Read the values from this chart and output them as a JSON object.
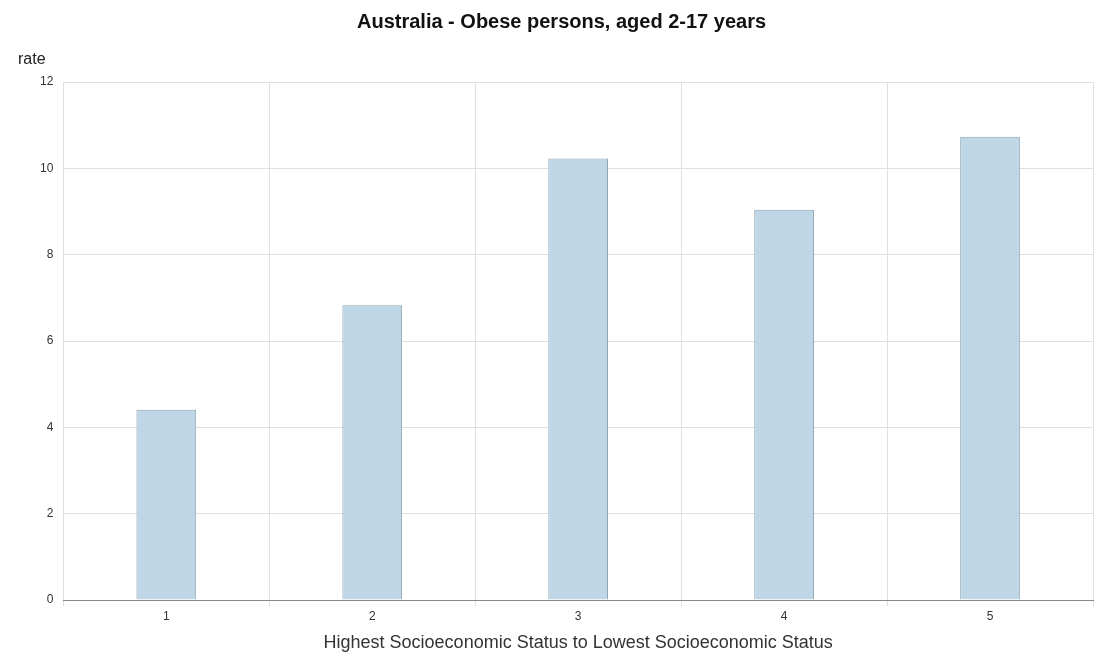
{
  "chart_data": {
    "type": "bar",
    "title": "Australia - Obese persons, aged 2-17 years",
    "xlabel": "Highest Socioeconomic Status to Lowest Socioeconomic Status",
    "ylabel": "rate",
    "categories": [
      "1",
      "2",
      "3",
      "4",
      "5"
    ],
    "values": [
      4.41,
      6.83,
      10.23,
      9.04,
      10.73
    ],
    "color": "#bed6e6",
    "ylim": [
      0,
      12
    ],
    "yticks": [
      0,
      2,
      4,
      6,
      8,
      10,
      12
    ],
    "grid": true
  }
}
